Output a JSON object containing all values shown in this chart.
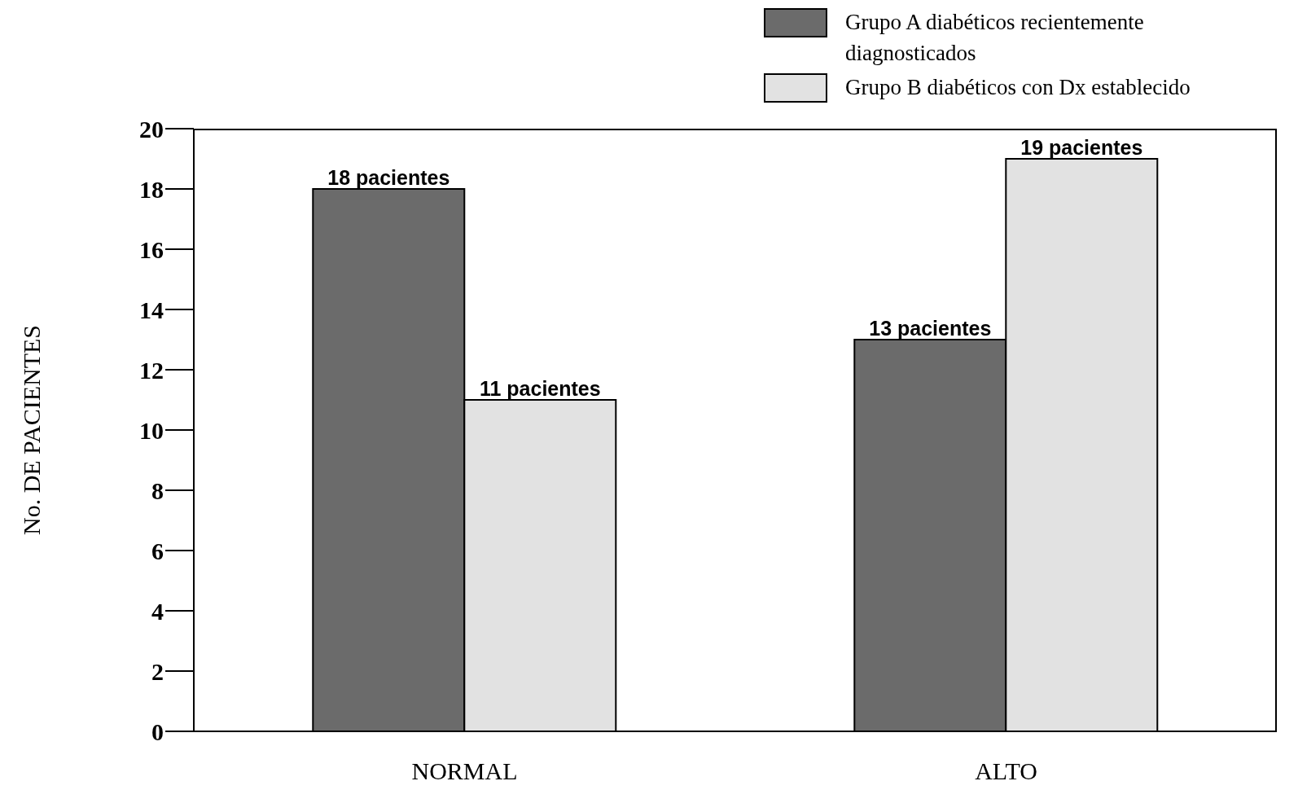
{
  "chart_data": {
    "type": "bar",
    "ylabel": "No. DE PACIENTES",
    "categories": [
      "NORMAL",
      "ALTO"
    ],
    "series": [
      {
        "name": "Grupo A diabéticos recientemente diagnosticados",
        "color": "#6b6b6b",
        "values": [
          18,
          13
        ],
        "value_labels": [
          "18 pacientes",
          "13 pacientes"
        ]
      },
      {
        "name": "Grupo B diabéticos con Dx establecido",
        "color": "#e2e2e2",
        "values": [
          11,
          19
        ],
        "value_labels": [
          "11 pacientes",
          "19 pacientes"
        ]
      }
    ],
    "ylim": [
      0,
      20
    ],
    "yticks": [
      0,
      2,
      4,
      6,
      8,
      10,
      12,
      14,
      16,
      18,
      20
    ],
    "grid": false,
    "legend": "top right"
  }
}
